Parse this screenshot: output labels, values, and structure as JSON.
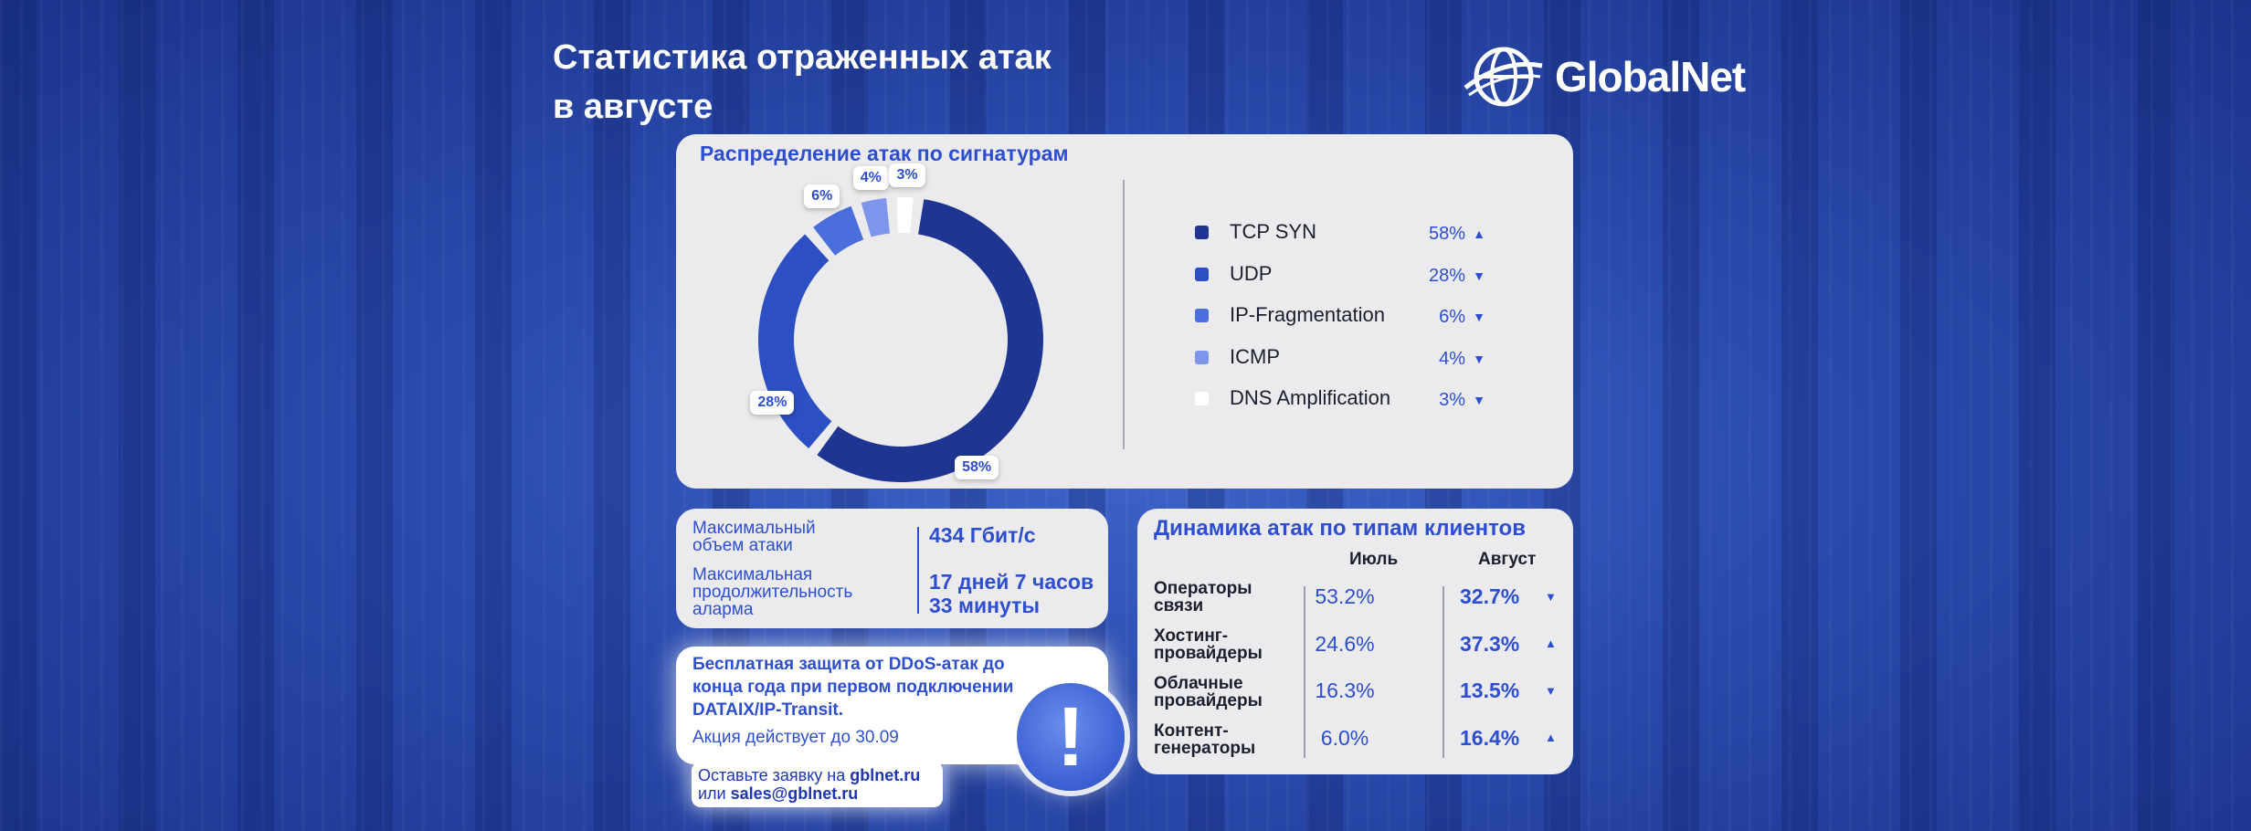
{
  "header": {
    "title_line1": "Статистика отраженных атак",
    "title_line2": "в августе",
    "logo_text": "GlobalNet"
  },
  "distribution": {
    "title": "Распределение атак по сигнатурам",
    "chart_data": {
      "type": "pie",
      "title": "Распределение атак по сигнатурам",
      "categories": [
        "TCP SYN",
        "UDP",
        "IP-Fragmentation",
        "ICMP",
        "DNS Amplification"
      ],
      "values": [
        58,
        28,
        6,
        4,
        3
      ],
      "value_labels": [
        "58%",
        "28%",
        "6%",
        "4%",
        "3%"
      ],
      "trend": [
        "up",
        "down",
        "down",
        "down",
        "down"
      ],
      "colors": [
        "#1f3592",
        "#2c50c4",
        "#4a6fdc",
        "#7d95ea",
        "#ffffff"
      ],
      "legend_position": "right"
    },
    "legend": [
      {
        "label": "TCP SYN",
        "value": "58%",
        "arrow": "▲",
        "color": "#1f3592"
      },
      {
        "label": "UDP",
        "value": "28%",
        "arrow": "▼",
        "color": "#2c50c4"
      },
      {
        "label": "IP-Fragmentation",
        "value": "6%",
        "arrow": "▼",
        "color": "#4a6fdc"
      },
      {
        "label": "ICMP",
        "value": "4%",
        "arrow": "▼",
        "color": "#7d95ea"
      },
      {
        "label": "DNS Amplification",
        "value": "3%",
        "arrow": "▼",
        "color": "#ffffff"
      }
    ]
  },
  "max_attack": {
    "volume_label_1": "Максимальный",
    "volume_label_2": "объем атаки",
    "volume_value": "434 Гбит/с",
    "duration_label_1": "Максимальная",
    "duration_label_2": "продолжительность",
    "duration_label_3": "аларма",
    "duration_value_1": "17 дней 7 часов",
    "duration_value_2": "33 минуты"
  },
  "dynamics": {
    "title": "Динамика атак по типам клиентов",
    "col_july": "Июль",
    "col_august": "Август",
    "rows": [
      {
        "label1": "Операторы",
        "label2": "связи",
        "july": "53.2%",
        "august": "32.7%",
        "arrow": "▼"
      },
      {
        "label1": "Хостинг-",
        "label2": "провайдеры",
        "july": "24.6%",
        "august": "37.3%",
        "arrow": "▲"
      },
      {
        "label1": "Облачные",
        "label2": "провайдеры",
        "july": "16.3%",
        "august": "13.5%",
        "arrow": "▼"
      },
      {
        "label1": "Контент-",
        "label2": "генераторы",
        "july": "6.0%",
        "august": "16.4%",
        "arrow": "▲"
      }
    ]
  },
  "promo": {
    "line1": "Бесплатная защита от DDoS-атак до",
    "line2": "конца года при первом подключении",
    "line3": "DATAIX/IP-Transit.",
    "sub": "Акция действует до 30.09",
    "contact_prefix_1": "Оставьте заявку на ",
    "contact_site": "gblnet.ru",
    "contact_prefix_2": "или ",
    "contact_email": "sales@gblnet.ru",
    "badge": "!"
  }
}
